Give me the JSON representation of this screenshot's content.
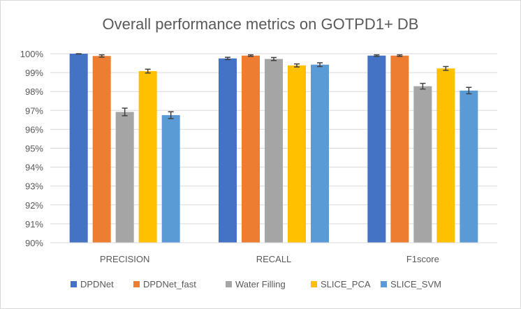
{
  "chart_data": {
    "type": "bar",
    "title": "Overall performance metrics on GOTPD1+ DB",
    "xlabel": "",
    "ylabel": "",
    "ylim": [
      90,
      100
    ],
    "yticks": [
      90,
      91,
      92,
      93,
      94,
      95,
      96,
      97,
      98,
      99,
      100
    ],
    "ytick_labels": [
      "90%",
      "91%",
      "92%",
      "93%",
      "94%",
      "95%",
      "96%",
      "97%",
      "98%",
      "99%",
      "100%"
    ],
    "categories": [
      "PRECISION",
      "RECALL",
      "F1score"
    ],
    "grid": true,
    "legend_position": "bottom",
    "series": [
      {
        "name": "DPDNet",
        "color": "#4472C4",
        "values": [
          100.0,
          99.75,
          99.9
        ],
        "errors": [
          0.02,
          0.06,
          0.04
        ]
      },
      {
        "name": "DPDNet_fast",
        "color": "#ED7D31",
        "values": [
          99.88,
          99.9,
          99.9
        ],
        "errors": [
          0.06,
          0.04,
          0.04
        ]
      },
      {
        "name": "Water Filling",
        "color": "#A5A5A5",
        "values": [
          96.92,
          99.72,
          98.28
        ],
        "errors": [
          0.2,
          0.08,
          0.15
        ]
      },
      {
        "name": "SLICE_PCA",
        "color": "#FFC000",
        "values": [
          99.08,
          99.38,
          99.22
        ],
        "errors": [
          0.1,
          0.08,
          0.1
        ]
      },
      {
        "name": "SLICE_SVM",
        "color": "#5B9BD5",
        "values": [
          96.75,
          99.42,
          98.05
        ],
        "errors": [
          0.18,
          0.1,
          0.17
        ]
      }
    ]
  }
}
